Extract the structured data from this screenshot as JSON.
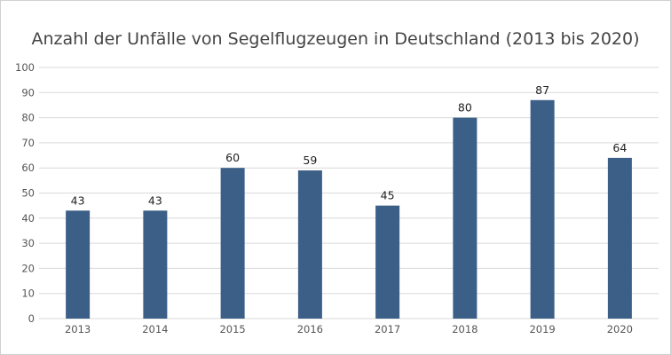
{
  "chart_data": {
    "type": "bar",
    "title": "Anzahl der Unfälle von Segelflugzeugen in Deutschland (2013 bis 2020)",
    "categories": [
      "2013",
      "2014",
      "2015",
      "2016",
      "2017",
      "2018",
      "2019",
      "2020"
    ],
    "values": [
      43,
      43,
      60,
      59,
      45,
      80,
      87,
      64
    ],
    "xlabel": "",
    "ylabel": "",
    "ylim": [
      0,
      100
    ],
    "yticks": [
      0,
      10,
      20,
      30,
      40,
      50,
      60,
      70,
      80,
      90,
      100
    ],
    "grid": true,
    "data_labels": true,
    "bar_color": "#3b5f87",
    "grid_color": "#d9d9d9"
  }
}
